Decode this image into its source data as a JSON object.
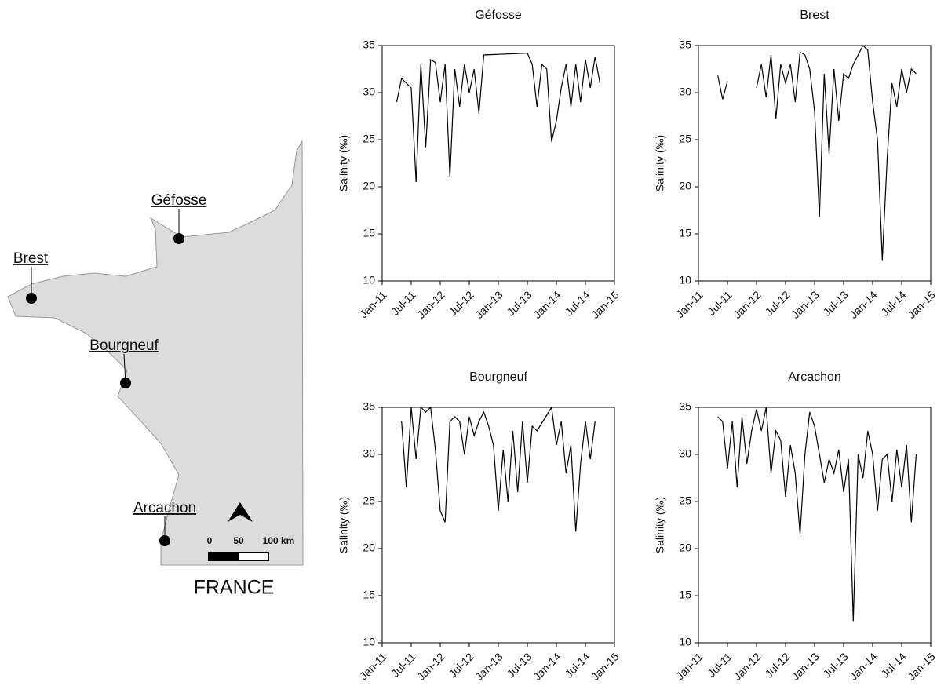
{
  "map": {
    "sites": [
      "Géfosse",
      "Brest",
      "Bourgneuf",
      "Arcachon"
    ],
    "country": "FRANCE",
    "scale": [
      "0",
      "50",
      "100 km"
    ]
  },
  "chart_data": [
    {
      "type": "line",
      "title": "Géfosse",
      "y_label": "Salinity (‰)",
      "xlim": [
        "2011-01",
        "2015-01"
      ],
      "ylim": [
        10,
        35
      ],
      "yticks": [
        10,
        15,
        20,
        25,
        30,
        35
      ],
      "xticks": [
        {
          "value": "2011-01",
          "label": "Jan-11"
        },
        {
          "value": "2011-07",
          "label": "Jul-11"
        },
        {
          "value": "2012-01",
          "label": "Jan-12"
        },
        {
          "value": "2012-07",
          "label": "Jul-12"
        },
        {
          "value": "2013-01",
          "label": "Jan-13"
        },
        {
          "value": "2013-07",
          "label": "Jul-13"
        },
        {
          "value": "2014-01",
          "label": "Jan-14"
        },
        {
          "value": "2014-07",
          "label": "Jul-14"
        },
        {
          "value": "2015-01",
          "label": "Jan-15"
        }
      ],
      "x": [
        "2011-04",
        "2011-05",
        "2011-06",
        "2011-07",
        "2011-08",
        "2011-09",
        "2011-10",
        "2011-11",
        "2011-12",
        "2012-01",
        "2012-02",
        "2012-03",
        "2012-04",
        "2012-05",
        "2012-06",
        "2012-07",
        "2012-08",
        "2012-09",
        "2012-10",
        "2013-07",
        "2013-08",
        "2013-09",
        "2013-10",
        "2013-11",
        "2013-12",
        "2014-01",
        "2014-02",
        "2014-03",
        "2014-04",
        "2014-05",
        "2014-06",
        "2014-07",
        "2014-08",
        "2014-09",
        "2014-10"
      ],
      "series": [
        {
          "color": "#000000",
          "values": [
            29,
            31.5,
            31,
            30.5,
            20.5,
            33,
            24.2,
            33.5,
            33.2,
            29,
            33,
            21,
            32.5,
            28.5,
            33,
            30,
            32.5,
            27.8,
            34,
            34.2,
            33,
            28.5,
            33,
            32.5,
            24.8,
            27,
            30.5,
            33,
            28.5,
            33,
            29,
            33.5,
            30.5,
            33.8,
            31
          ]
        }
      ]
    },
    {
      "type": "line",
      "title": "Brest",
      "y_label": "Salinity (‰)",
      "xlim": [
        "2011-01",
        "2015-01"
      ],
      "ylim": [
        10,
        35
      ],
      "yticks": [
        10,
        15,
        20,
        25,
        30,
        35
      ],
      "xticks": [
        {
          "value": "2011-01",
          "label": "Jan-11"
        },
        {
          "value": "2011-07",
          "label": "Jul-11"
        },
        {
          "value": "2012-01",
          "label": "Jan-12"
        },
        {
          "value": "2012-07",
          "label": "Jul-12"
        },
        {
          "value": "2013-01",
          "label": "Jan-13"
        },
        {
          "value": "2013-07",
          "label": "Jul-13"
        },
        {
          "value": "2014-01",
          "label": "Jan-14"
        },
        {
          "value": "2014-07",
          "label": "Jul-14"
        },
        {
          "value": "2015-01",
          "label": "Jan-15"
        }
      ],
      "x": [
        "2011-05",
        "2011-06",
        "2011-07",
        "2011-12",
        "2012-01",
        "2012-02",
        "2012-03",
        "2012-04",
        "2012-05",
        "2012-06",
        "2012-07",
        "2012-08",
        "2012-09",
        "2012-10",
        "2012-11",
        "2012-12",
        "2013-01",
        "2013-02",
        "2013-03",
        "2013-04",
        "2013-05",
        "2013-06",
        "2013-07",
        "2013-08",
        "2013-09",
        "2013-10",
        "2013-11",
        "2013-12",
        "2014-01",
        "2014-02",
        "2014-03",
        "2014-04",
        "2014-05",
        "2014-06",
        "2014-07",
        "2014-08",
        "2014-09",
        "2014-10"
      ],
      "series": [
        {
          "color": "#000000",
          "values": [
            31.8,
            29.3,
            31.2,
            null,
            30.5,
            33,
            29.5,
            34,
            27.2,
            33,
            31,
            33,
            29,
            34.3,
            34,
            32.5,
            28,
            16.8,
            32,
            23.5,
            32.5,
            27,
            32,
            31.5,
            33,
            34,
            35,
            34.5,
            29,
            25,
            12.2,
            23,
            31,
            28.5,
            32.5,
            30,
            32.5,
            32
          ]
        }
      ]
    },
    {
      "type": "line",
      "title": "Bourgneuf",
      "y_label": "Salinity (‰)",
      "xlim": [
        "2011-01",
        "2015-01"
      ],
      "ylim": [
        10,
        35
      ],
      "yticks": [
        10,
        15,
        20,
        25,
        30,
        35
      ],
      "xticks": [
        {
          "value": "2011-01",
          "label": "Jan-11"
        },
        {
          "value": "2011-07",
          "label": "Jul-11"
        },
        {
          "value": "2012-01",
          "label": "Jan-12"
        },
        {
          "value": "2012-07",
          "label": "Jul-12"
        },
        {
          "value": "2013-01",
          "label": "Jan-13"
        },
        {
          "value": "2013-07",
          "label": "Jul-13"
        },
        {
          "value": "2014-01",
          "label": "Jan-14"
        },
        {
          "value": "2014-07",
          "label": "Jul-14"
        },
        {
          "value": "2015-01",
          "label": "Jan-15"
        }
      ],
      "x": [
        "2011-05",
        "2011-06",
        "2011-07",
        "2011-08",
        "2011-09",
        "2011-10",
        "2011-11",
        "2011-12",
        "2012-01",
        "2012-02",
        "2012-03",
        "2012-04",
        "2012-05",
        "2012-06",
        "2012-07",
        "2012-08",
        "2012-09",
        "2012-10",
        "2012-11",
        "2012-12",
        "2013-01",
        "2013-02",
        "2013-03",
        "2013-04",
        "2013-05",
        "2013-06",
        "2013-07",
        "2013-08",
        "2013-09",
        "2013-12",
        "2014-01",
        "2014-02",
        "2014-03",
        "2014-04",
        "2014-05",
        "2014-06",
        "2014-07",
        "2014-08",
        "2014-09"
      ],
      "series": [
        {
          "color": "#000000",
          "values": [
            33.5,
            26.5,
            35,
            29.5,
            35,
            34.5,
            35,
            30.5,
            24,
            22.8,
            33.5,
            34,
            33.5,
            30,
            34,
            32,
            33.5,
            34.5,
            33,
            31,
            24,
            30.5,
            25,
            32.5,
            26,
            33.5,
            27,
            33,
            32.5,
            35,
            31,
            33.5,
            28,
            31,
            21.8,
            29,
            33.5,
            29.5,
            33.5
          ]
        }
      ]
    },
    {
      "type": "line",
      "title": "Arcachon",
      "y_label": "Salinity (‰)",
      "xlim": [
        "2011-01",
        "2015-01"
      ],
      "ylim": [
        10,
        35
      ],
      "yticks": [
        10,
        15,
        20,
        25,
        30,
        35
      ],
      "xticks": [
        {
          "value": "2011-01",
          "label": "Jan-11"
        },
        {
          "value": "2011-07",
          "label": "Jul-11"
        },
        {
          "value": "2012-01",
          "label": "Jan-12"
        },
        {
          "value": "2012-07",
          "label": "Jul-12"
        },
        {
          "value": "2013-01",
          "label": "Jan-13"
        },
        {
          "value": "2013-07",
          "label": "Jul-13"
        },
        {
          "value": "2014-01",
          "label": "Jan-14"
        },
        {
          "value": "2014-07",
          "label": "Jul-14"
        },
        {
          "value": "2015-01",
          "label": "Jan-15"
        }
      ],
      "x": [
        "2011-05",
        "2011-06",
        "2011-07",
        "2011-08",
        "2011-09",
        "2011-10",
        "2011-11",
        "2011-12",
        "2012-01",
        "2012-02",
        "2012-03",
        "2012-04",
        "2012-05",
        "2012-06",
        "2012-07",
        "2012-08",
        "2012-09",
        "2012-10",
        "2012-11",
        "2012-12",
        "2013-01",
        "2013-02",
        "2013-03",
        "2013-04",
        "2013-05",
        "2013-06",
        "2013-07",
        "2013-08",
        "2013-09",
        "2013-10",
        "2013-11",
        "2013-12",
        "2014-01",
        "2014-02",
        "2014-03",
        "2014-04",
        "2014-05",
        "2014-06",
        "2014-07",
        "2014-08",
        "2014-09",
        "2014-10"
      ],
      "series": [
        {
          "color": "#000000",
          "values": [
            34,
            33.5,
            28.5,
            33.5,
            26.5,
            34,
            29,
            32.5,
            34.8,
            32.5,
            35,
            28,
            32.5,
            31.5,
            25.5,
            31,
            28,
            21.5,
            30,
            34.5,
            33,
            30,
            27,
            29.5,
            28,
            30.5,
            26,
            29.5,
            12.3,
            30,
            27.5,
            32.5,
            30,
            24,
            29.5,
            30,
            25,
            30.5,
            26.5,
            31,
            22.8,
            30
          ]
        }
      ]
    }
  ]
}
